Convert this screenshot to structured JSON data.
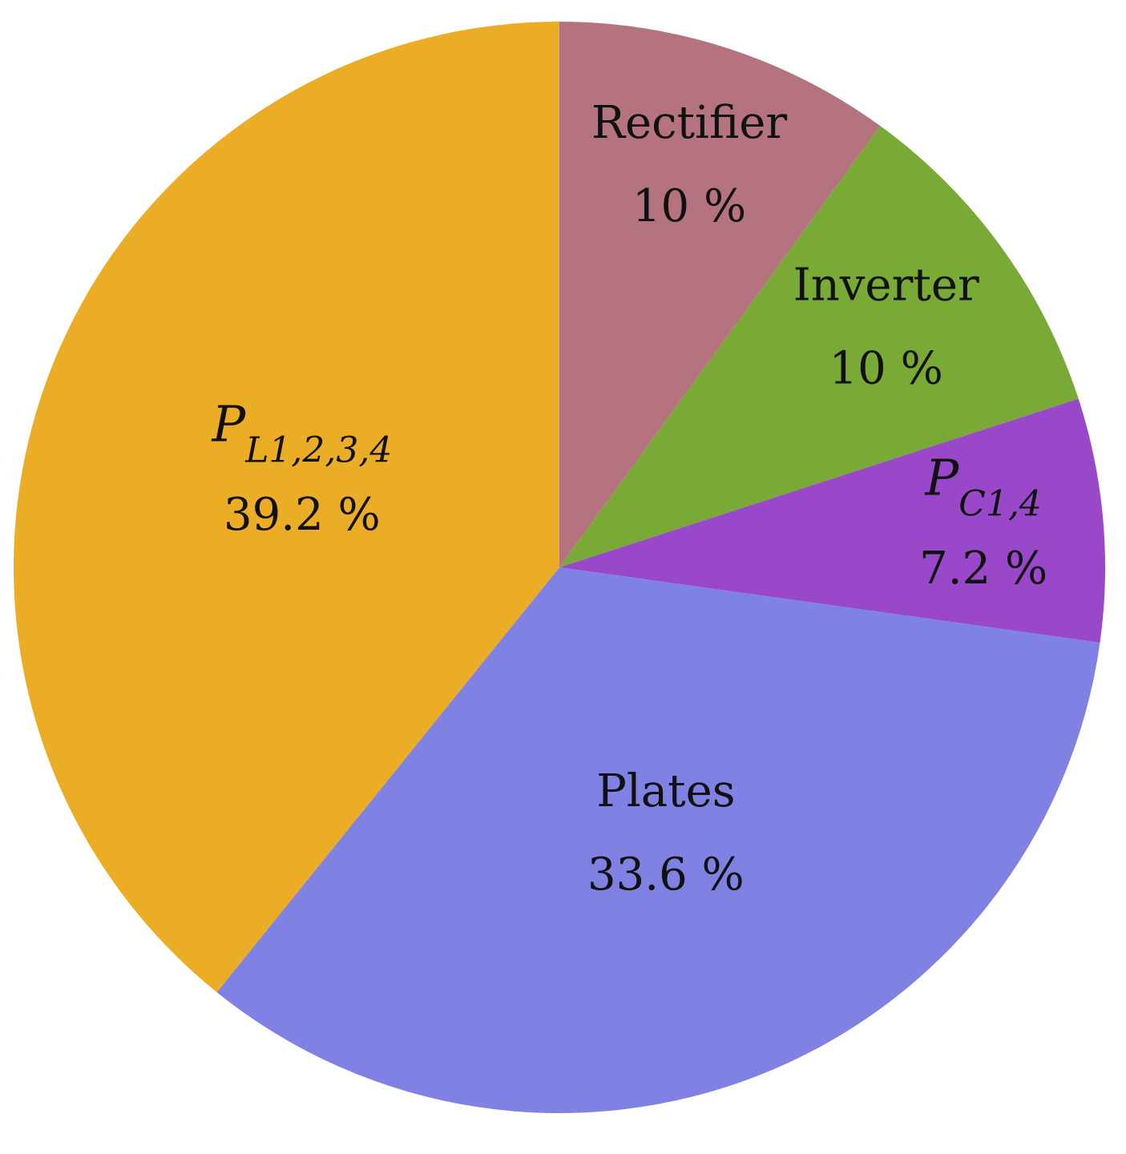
{
  "chart_data": {
    "type": "pie",
    "categories": [
      "Rectifier",
      "Inverter",
      {
        "base": "P",
        "sub": "C1,4"
      },
      "Plates",
      {
        "base": "P",
        "sub": "L1,2,3,4"
      }
    ],
    "values": [
      10,
      10,
      7.2,
      33.6,
      39.2
    ],
    "value_labels": [
      "10 %",
      "10 %",
      "7.2 %",
      "33.6 %",
      "39.2 %"
    ],
    "colors": [
      "#b5737f",
      "#79aa35",
      "#9848c8",
      "#7f81e3",
      "#ebad26"
    ]
  }
}
